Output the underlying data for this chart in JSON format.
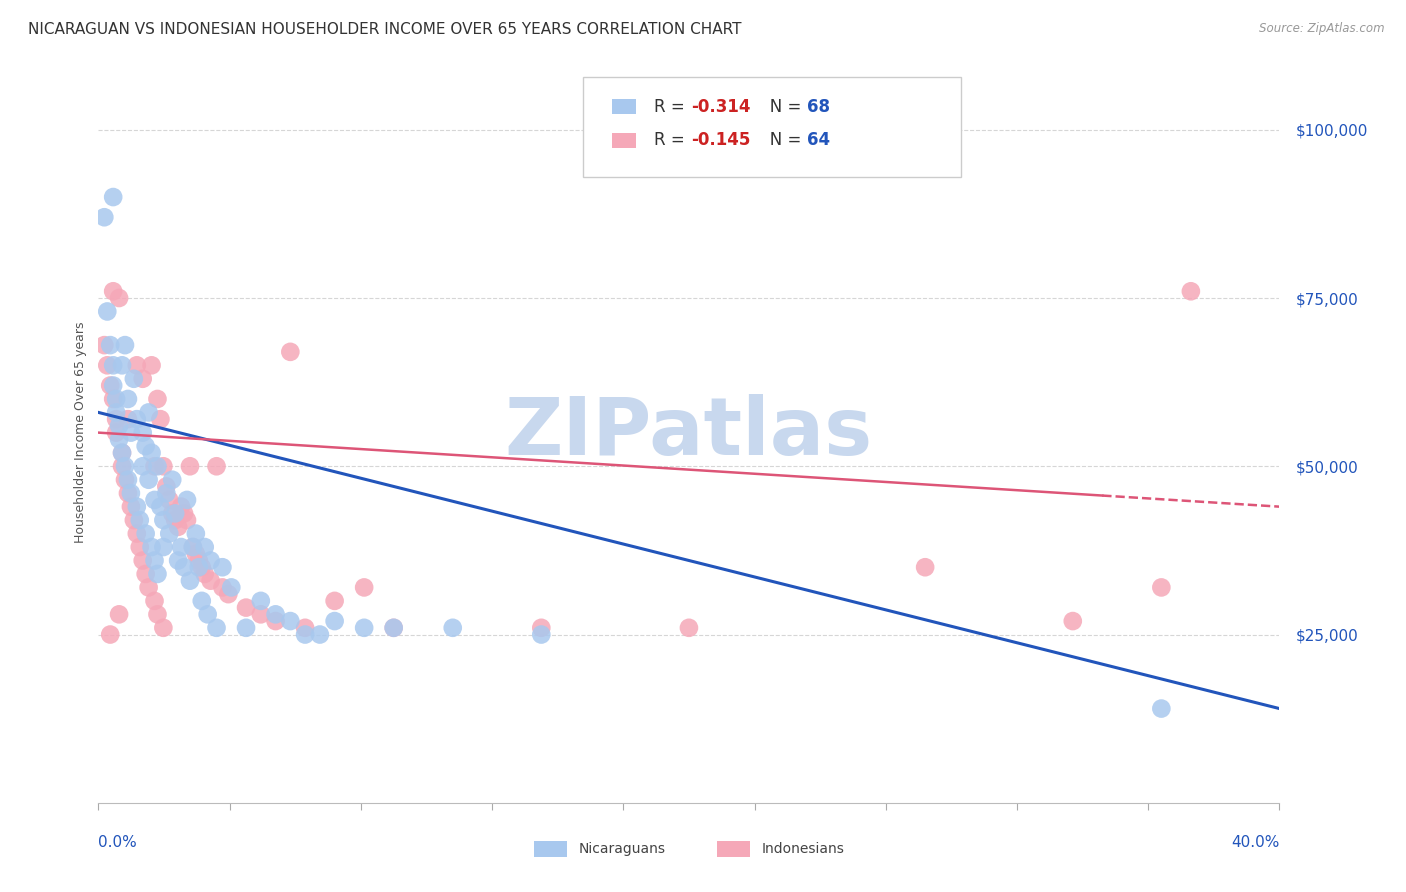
{
  "title": "NICARAGUAN VS INDONESIAN HOUSEHOLDER INCOME OVER 65 YEARS CORRELATION CHART",
  "source": "Source: ZipAtlas.com",
  "ylabel": "Householder Income Over 65 years",
  "xmin": 0.0,
  "xmax": 0.4,
  "ymin": 0,
  "ymax": 110000,
  "yticks": [
    25000,
    50000,
    75000,
    100000
  ],
  "ytick_labels": [
    "$25,000",
    "$50,000",
    "$75,000",
    "$100,000"
  ],
  "nic_R": "-0.314",
  "nic_N": "68",
  "ind_R": "-0.145",
  "ind_N": "64",
  "nic_color": "#A8C8EE",
  "nic_line_color": "#2255BB",
  "ind_color": "#F5A8B8",
  "ind_line_color": "#DD5577",
  "grid_color": "#CCCCCC",
  "background_color": "#FFFFFF",
  "watermark": "ZIPatlas",
  "watermark_color": "#C8D8EE",
  "nic_line_y0": 58000,
  "nic_line_y1": 14000,
  "ind_line_y0": 55000,
  "ind_line_y1": 44000,
  "nic_scatter_x": [
    0.002,
    0.003,
    0.004,
    0.005,
    0.005,
    0.006,
    0.006,
    0.007,
    0.007,
    0.008,
    0.008,
    0.009,
    0.009,
    0.01,
    0.01,
    0.011,
    0.011,
    0.012,
    0.013,
    0.013,
    0.014,
    0.015,
    0.015,
    0.016,
    0.016,
    0.017,
    0.017,
    0.018,
    0.018,
    0.019,
    0.019,
    0.02,
    0.02,
    0.021,
    0.022,
    0.022,
    0.023,
    0.024,
    0.025,
    0.026,
    0.027,
    0.028,
    0.029,
    0.03,
    0.031,
    0.032,
    0.033,
    0.034,
    0.035,
    0.036,
    0.037,
    0.038,
    0.04,
    0.042,
    0.045,
    0.05,
    0.055,
    0.06,
    0.065,
    0.07,
    0.075,
    0.08,
    0.09,
    0.1,
    0.12,
    0.15,
    0.36,
    0.005
  ],
  "nic_scatter_y": [
    87000,
    73000,
    68000,
    65000,
    62000,
    60000,
    58000,
    56000,
    54000,
    52000,
    65000,
    50000,
    68000,
    48000,
    60000,
    55000,
    46000,
    63000,
    44000,
    57000,
    42000,
    55000,
    50000,
    53000,
    40000,
    48000,
    58000,
    38000,
    52000,
    36000,
    45000,
    34000,
    50000,
    44000,
    42000,
    38000,
    46000,
    40000,
    48000,
    43000,
    36000,
    38000,
    35000,
    45000,
    33000,
    38000,
    40000,
    35000,
    30000,
    38000,
    28000,
    36000,
    26000,
    35000,
    32000,
    26000,
    30000,
    28000,
    27000,
    25000,
    25000,
    27000,
    26000,
    26000,
    26000,
    25000,
    14000,
    90000
  ],
  "ind_scatter_x": [
    0.002,
    0.003,
    0.004,
    0.005,
    0.005,
    0.006,
    0.006,
    0.007,
    0.008,
    0.008,
    0.009,
    0.01,
    0.01,
    0.011,
    0.012,
    0.013,
    0.013,
    0.014,
    0.015,
    0.015,
    0.016,
    0.017,
    0.018,
    0.019,
    0.02,
    0.02,
    0.021,
    0.022,
    0.022,
    0.023,
    0.024,
    0.025,
    0.026,
    0.027,
    0.028,
    0.029,
    0.03,
    0.031,
    0.032,
    0.033,
    0.034,
    0.035,
    0.036,
    0.038,
    0.04,
    0.042,
    0.044,
    0.05,
    0.055,
    0.06,
    0.065,
    0.07,
    0.08,
    0.09,
    0.1,
    0.15,
    0.2,
    0.28,
    0.33,
    0.37,
    0.004,
    0.007,
    0.019,
    0.36
  ],
  "ind_scatter_y": [
    68000,
    65000,
    62000,
    60000,
    76000,
    57000,
    55000,
    75000,
    52000,
    50000,
    48000,
    57000,
    46000,
    44000,
    42000,
    40000,
    65000,
    38000,
    36000,
    63000,
    34000,
    32000,
    65000,
    30000,
    60000,
    28000,
    57000,
    26000,
    50000,
    47000,
    45000,
    43000,
    42000,
    41000,
    44000,
    43000,
    42000,
    50000,
    38000,
    37000,
    36000,
    35000,
    34000,
    33000,
    50000,
    32000,
    31000,
    29000,
    28000,
    27000,
    67000,
    26000,
    30000,
    32000,
    26000,
    26000,
    26000,
    35000,
    27000,
    76000,
    25000,
    28000,
    50000,
    32000
  ]
}
